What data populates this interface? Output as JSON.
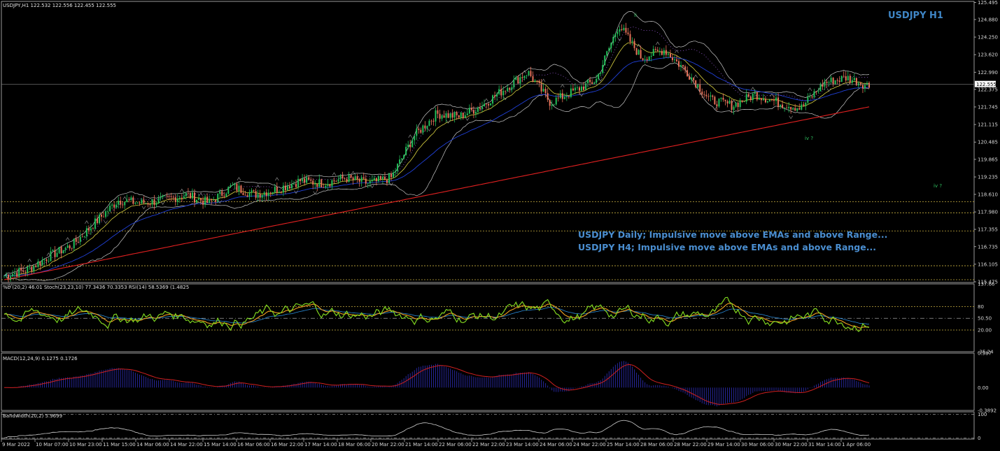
{
  "chart_data": {
    "type": "candlestick",
    "symbol_header": "USDJPY,H1  122.532 122.556 122.455 122.555",
    "title": "USDJPY H1",
    "current_price": "122.555",
    "price_axis": {
      "ylim": [
        115.45,
        125.53
      ],
      "ticks": [
        "125.495",
        "124.880",
        "124.250",
        "123.620",
        "122.990",
        "122.375",
        "121.745",
        "121.115",
        "120.485",
        "119.865",
        "119.235",
        "118.610",
        "117.980",
        "117.355",
        "116.735",
        "116.105",
        "115.475"
      ]
    },
    "ohlc_anchor_closes": [
      115.7,
      115.9,
      116.4,
      116.8,
      117.6,
      118.4,
      118.3,
      118.4,
      118.6,
      118.3,
      118.9,
      118.6,
      118.8,
      119.1,
      119.0,
      119.2,
      119.0,
      119.2,
      120.7,
      121.5,
      121.4,
      121.8,
      122.4,
      123.0,
      121.9,
      122.3,
      122.7,
      124.7,
      123.5,
      123.8,
      123.0,
      122.0,
      121.8,
      122.2,
      121.9,
      121.7,
      122.6,
      122.8,
      122.5
    ],
    "annotations": {
      "lines": [
        "USDJPY Daily; Impulsive move above EMAs and above Range...",
        "USDJPY H4; Impulsive move above EMAs and above Range..."
      ],
      "wave_labels": [
        "ii",
        "iv ?",
        "iv ?"
      ]
    },
    "x_axis": {
      "tick_labels": [
        "9 Mar 2022",
        "10 Mar 07:00",
        "10 Mar 23:00",
        "11 Mar 15:00",
        "14 Mar 06:00",
        "14 Mar 22:00",
        "15 Mar 14:00",
        "16 Mar 06:00",
        "16 Mar 22:00",
        "17 Mar 14:00",
        "18 Mar 06:00",
        "20 Mar 22:00",
        "21 Mar 14:00",
        "22 Mar 06:00",
        "22 Mar 22:00",
        "23 Mar 14:00",
        "24 Mar 06:00",
        "24 Mar 22:00",
        "25 Mar 14:00",
        "28 Mar 06:00",
        "28 Mar 22:00",
        "29 Mar 14:00",
        "30 Mar 06:00",
        "30 Mar 22:00",
        "31 Mar 14:00",
        "1 Apr 06:00"
      ]
    },
    "indicators": {
      "oscillator": {
        "label": "%b (20,2) 46.01  Stoch(23,23,10) 77.3436 70.3353  RSI(14) 58.5369  (1.4825",
        "ticks": [
          "137.66",
          "80",
          "50.50",
          "20.00",
          "-35.24"
        ],
        "levels": [
          80,
          50,
          20
        ]
      },
      "macd": {
        "label": "MACD(12,24,9) 0.1275 0.1726",
        "ticks": [
          "0.587",
          "0.00",
          "-0.3892"
        ]
      },
      "bandwidth": {
        "label": "Bandwidth(20,2) 5.9699",
        "ticks": [
          "100",
          "0"
        ]
      }
    },
    "horizontal_levels": [
      118.35,
      117.95,
      117.3,
      116.05,
      115.55
    ],
    "colors": {
      "background": "#000000",
      "bull_candle": "#22c05a",
      "bear_candle": "#e8735a",
      "ema200": "#e02020",
      "ema_blue": "#2040d8",
      "ema_yellow": "#d8d040",
      "bollinger": "#c8c8c8",
      "dotted_purple": "#9a5ad8",
      "level_lines": "#c8b040",
      "stoch_main": "#80e020",
      "stoch_signal": "#f0a020",
      "rsi_blue": "#2a8ad8",
      "macd_hist": "#2a2aa8",
      "macd_signal": "#d02020",
      "bandwidth_line": "#d0d0d0",
      "text_blue": "#3f86c6",
      "wave_green": "#2fbf5f"
    }
  }
}
